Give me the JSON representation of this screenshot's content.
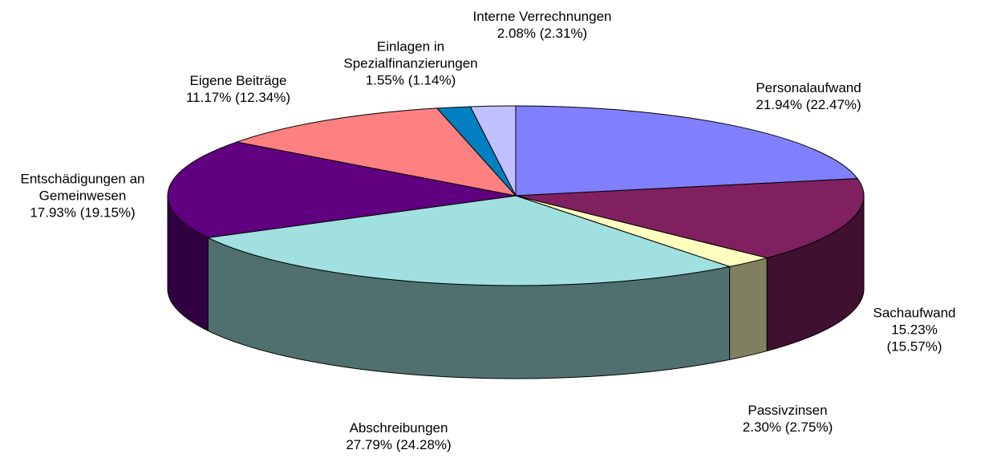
{
  "chart_data": {
    "type": "pie3d",
    "categories": [
      "Personalaufwand",
      "Sachaufwand",
      "Passivzinsen",
      "Abschreibungen",
      "Entschädigungen an\nGemeinwesen",
      "Eigene Beiträge",
      "Einlagen in\nSpezialfinanzierungen",
      "Interne Verrechnungen"
    ],
    "values": [
      21.94,
      15.23,
      2.3,
      27.79,
      17.93,
      11.17,
      1.55,
      2.08
    ],
    "value_labels": [
      "21.94% (22.47%)",
      "15.23% (15.57%)",
      "2.30% (2.75%)",
      "27.79% (24.28%)",
      "17.93% (19.15%)",
      "11.17% (12.34%)",
      "1.55% (1.14%)",
      "2.08% (2.31%)"
    ],
    "colors": [
      "#8080ff",
      "#802060",
      "#ffffc0",
      "#a0e0e0",
      "#600080",
      "#ff8080",
      "#0080c0",
      "#c0c0ff"
    ]
  }
}
